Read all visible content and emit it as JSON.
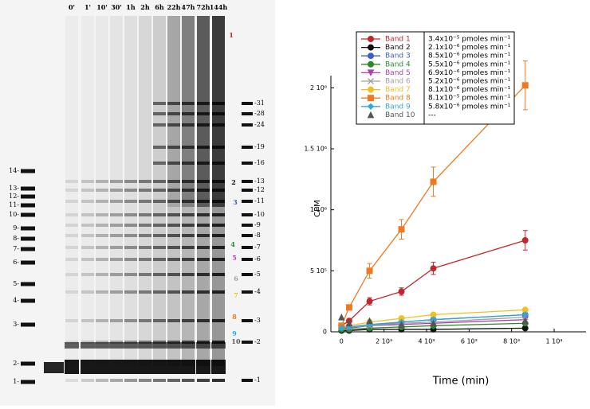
{
  "gel": {
    "lanes": [
      "0'",
      "1'",
      "10'",
      "30'",
      "1h",
      "2h",
      "6h",
      "22h",
      "47h",
      "72h",
      "144h"
    ],
    "left_ladder": [
      "14-",
      "13-",
      "12-",
      "11-",
      "10-",
      "9-",
      "8-",
      "7-",
      "6-",
      "5-",
      "4-",
      "3-",
      "2-",
      "1-"
    ],
    "right_ladder": [
      "-31",
      "-28",
      "-24",
      "-19",
      "-16",
      "-13",
      "-12",
      "-11",
      "-10",
      "-9",
      "-8",
      "-7",
      "-6",
      "-5",
      "-4",
      "-3",
      "-2",
      "-1"
    ],
    "band_labels": [
      "1",
      "2",
      "3",
      "4",
      "5",
      "6",
      "7",
      "8",
      "9",
      "10"
    ]
  },
  "chart_data": {
    "type": "line",
    "x_label": "Time (min)",
    "y_label": "CPM",
    "x": [
      0,
      360,
      1320,
      2820,
      4320,
      8640
    ],
    "xlim": [
      -500,
      11500
    ],
    "xticks": [
      {
        "value": 0,
        "label": "0"
      },
      {
        "value": 2000,
        "label": "2 10³"
      },
      {
        "value": 4000,
        "label": "4 10³"
      },
      {
        "value": 6000,
        "label": "6 10³"
      },
      {
        "value": 8000,
        "label": "8 10³"
      },
      {
        "value": 10000,
        "label": "1 10⁴"
      }
    ],
    "ylim": [
      0,
      2100000
    ],
    "yticks": [
      {
        "value": 0,
        "label": "0"
      },
      {
        "value": 500000,
        "label": "5 10⁵"
      },
      {
        "value": 1000000,
        "label": "1 10⁶"
      },
      {
        "value": 1500000,
        "label": "1.5 10⁶"
      },
      {
        "value": 2000000,
        "label": "2 10⁶"
      }
    ],
    "series": [
      {
        "name": "Band 1",
        "color": "#c0272d",
        "marker": "circle",
        "rate": "3.4x10⁻⁵ pmoles min⁻¹",
        "values": [
          50000,
          90000,
          250000,
          330000,
          520000,
          750000
        ],
        "errors": [
          10000,
          10000,
          30000,
          30000,
          50000,
          80000
        ]
      },
      {
        "name": "Band 2",
        "color": "#111111",
        "marker": "circle",
        "rate": "2.1x10⁻⁶ pmoles min⁻¹",
        "values": [
          10000,
          10000,
          20000,
          20000,
          20000,
          30000
        ]
      },
      {
        "name": "Band 3",
        "color": "#3b5fc0",
        "marker": "circle",
        "rate": "8.5x10⁻⁶ pmoles min⁻¹",
        "values": [
          30000,
          40000,
          50000,
          80000,
          100000,
          140000
        ]
      },
      {
        "name": "Band 4",
        "color": "#2a8a2a",
        "marker": "circle",
        "rate": "5.5x10⁻⁶ pmoles min⁻¹",
        "values": [
          20000,
          20000,
          30000,
          40000,
          50000,
          70000
        ]
      },
      {
        "name": "Band 5",
        "color": "#b040b0",
        "marker": "triangle-down",
        "rate": "6.9x10⁻⁶ pmoles min⁻¹",
        "values": [
          30000,
          30000,
          50000,
          60000,
          70000,
          100000
        ]
      },
      {
        "name": "Band 6",
        "color": "#a0a0a0",
        "marker": "cross",
        "rate": "5.2x10⁻⁶ pmoles min⁻¹",
        "values": [
          40000,
          40000,
          50000,
          70000,
          80000,
          120000
        ]
      },
      {
        "name": "Band 7",
        "color": "#f0c020",
        "marker": "circle",
        "rate": "8.1x10⁻⁶ pmoles min⁻¹",
        "values": [
          40000,
          50000,
          80000,
          110000,
          140000,
          180000
        ]
      },
      {
        "name": "Band 8",
        "color": "#f07820",
        "marker": "square",
        "rate": "8.1x10⁻⁵ pmoles min⁻¹",
        "values": [
          50000,
          200000,
          500000,
          840000,
          1230000,
          2020000
        ],
        "errors": [
          10000,
          20000,
          60000,
          80000,
          120000,
          200000
        ]
      },
      {
        "name": "Band 9",
        "color": "#30a8d8",
        "marker": "diamond",
        "rate": "5.8x10⁻⁶ pmoles min⁻¹",
        "values": [
          30000,
          40000,
          60000,
          80000,
          100000,
          140000
        ]
      },
      {
        "name": "Band 10",
        "color": "#555555",
        "marker": "triangle",
        "line": false,
        "rate": "---",
        "values": [
          120000,
          70000,
          90000,
          60000,
          70000,
          90000
        ]
      }
    ]
  }
}
